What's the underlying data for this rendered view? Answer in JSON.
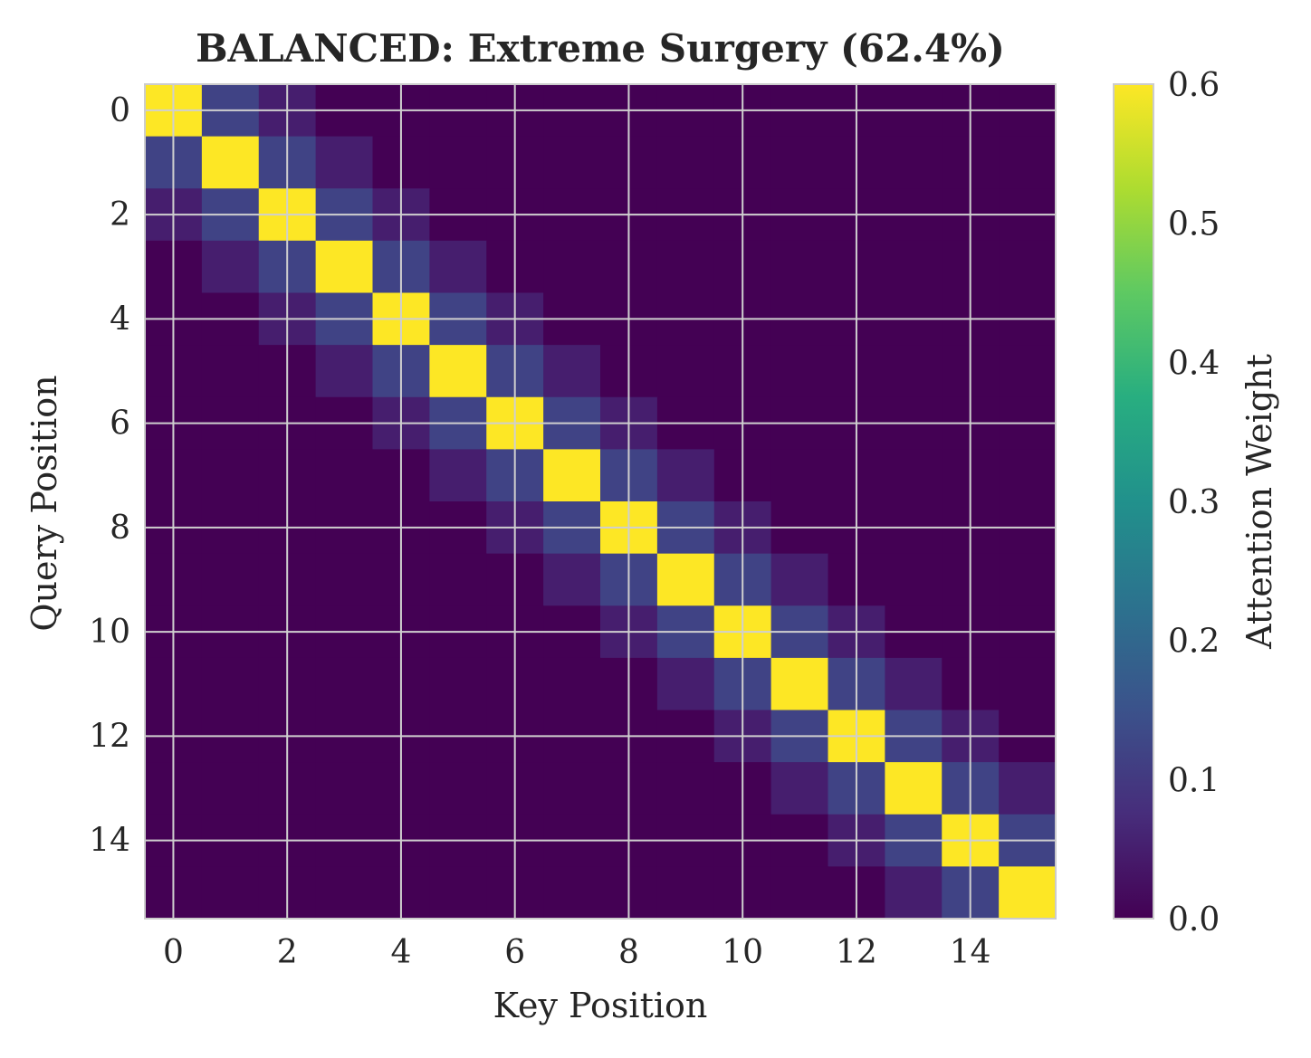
{
  "chart_data": {
    "type": "heatmap",
    "title": "BALANCED: Extreme Surgery (62.4%)",
    "xlabel": "Key Position",
    "ylabel": "Query Position",
    "size": 16,
    "band_weights": [
      0.6,
      0.12,
      0.05
    ],
    "xticks": [
      0,
      2,
      4,
      6,
      8,
      10,
      12,
      14
    ],
    "yticks": [
      0,
      2,
      4,
      6,
      8,
      10,
      12,
      14
    ],
    "grid": true,
    "colorbar": {
      "label": "Attention Weight",
      "vmin": 0.0,
      "vmax": 0.6,
      "ticks": [
        "0.0",
        "0.1",
        "0.2",
        "0.3",
        "0.4",
        "0.5",
        "0.6"
      ],
      "colormap": "viridis"
    },
    "colors": {
      "grid": "#cfcfcf",
      "spine": "#cccccc"
    }
  }
}
